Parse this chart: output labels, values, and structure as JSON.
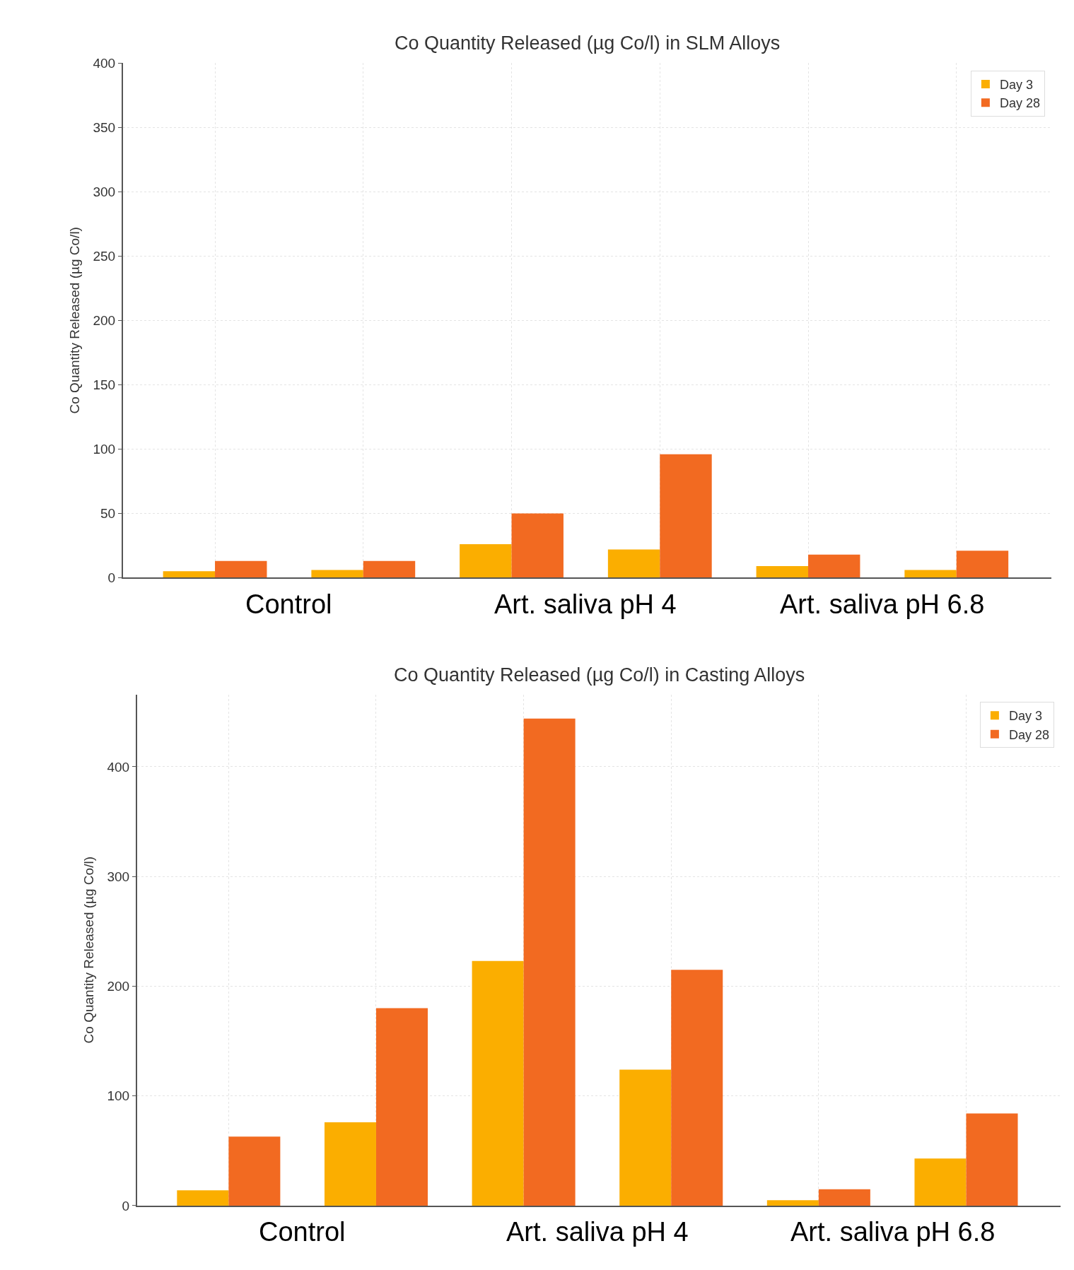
{
  "chart_data": [
    {
      "type": "bar",
      "title": "Co Quantity Released (µg Co/l) in SLM Alloys",
      "ylabel": "Co Quantity Released (µg Co/l)",
      "categories": [
        null,
        null,
        null,
        null,
        null,
        null
      ],
      "series": [
        {
          "name": "Day 3",
          "color": "#fbae00",
          "values": [
            5,
            6,
            26,
            22,
            9,
            6
          ]
        },
        {
          "name": "Day 28",
          "color": "#f26a21",
          "values": [
            13,
            13,
            50,
            96,
            18,
            21
          ]
        }
      ],
      "ylim": [
        0,
        400
      ],
      "yticks": [
        0,
        50,
        100,
        150,
        200,
        250,
        300,
        350,
        400
      ],
      "grid": true,
      "legend": "top right",
      "annotations": [
        "Control",
        "Art. saliva pH 4",
        "Art. saliva pH 6.8"
      ]
    },
    {
      "type": "bar",
      "title": "Co Quantity Released (µg Co/l) in Casting Alloys",
      "ylabel": "Co Quantity Released (µg Co/l)",
      "categories": [
        null,
        null,
        null,
        null,
        null,
        null
      ],
      "series": [
        {
          "name": "Day 3",
          "color": "#fbae00",
          "values": [
            14,
            76,
            223,
            124,
            5,
            43
          ]
        },
        {
          "name": "Day 28",
          "color": "#f26a21",
          "values": [
            63,
            180,
            444,
            215,
            15,
            84
          ]
        }
      ],
      "ylim": [
        0,
        466
      ],
      "yticks": [
        0,
        100,
        200,
        300,
        400
      ],
      "grid": true,
      "legend": "top right",
      "annotations": [
        "Control",
        "Art. saliva pH 4",
        "Art. saliva pH 6.8"
      ]
    }
  ]
}
